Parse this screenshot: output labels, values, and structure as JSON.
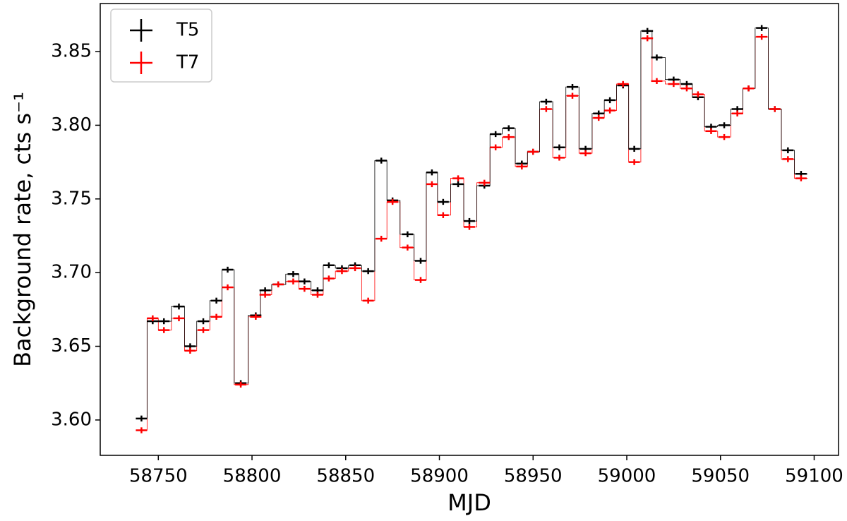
{
  "chart_data": {
    "type": "step-errorbar",
    "xlabel": "MJD",
    "ylabel": "Background rate, cts s⁻¹",
    "xlim": [
      58719,
      59113
    ],
    "ylim": [
      3.576,
      3.8826
    ],
    "xticks": [
      58750,
      58800,
      58850,
      58900,
      58950,
      59000,
      59050,
      59100
    ],
    "yticks": [
      {
        "value": 3.6,
        "label": "3.60"
      },
      3.65,
      {
        "value": 3.7,
        "label": "3.70"
      },
      3.75,
      {
        "value": 3.8,
        "label": "3.80"
      },
      3.85
    ],
    "legend": "upper left",
    "x": [
      58741,
      58747,
      58753,
      58761,
      58767,
      58774,
      58781,
      58787,
      58794,
      58802,
      58807,
      58814,
      58822,
      58828,
      58835,
      58841,
      58848,
      58855,
      58862,
      58869,
      58875,
      58883,
      58890,
      58896,
      58902,
      58910,
      58916,
      58924,
      58930,
      58937,
      58944,
      58950,
      58957,
      58964,
      58971,
      58978,
      58985,
      58991,
      58998,
      59004,
      59011,
      59016,
      59025,
      59032,
      59038,
      59045,
      59052,
      59059,
      59065,
      59072,
      59079,
      59086,
      59093
    ],
    "series": [
      {
        "name": "T5",
        "color": "#000000",
        "xerr": 3,
        "yerr": 0.002,
        "values": [
          3.601,
          3.667,
          3.667,
          3.677,
          3.65,
          3.667,
          3.681,
          3.702,
          3.625,
          3.671,
          3.688,
          3.692,
          3.699,
          3.694,
          3.688,
          3.705,
          3.703,
          3.705,
          3.701,
          3.776,
          3.749,
          3.726,
          3.708,
          3.768,
          3.748,
          3.76,
          3.735,
          3.759,
          3.794,
          3.798,
          3.774,
          3.782,
          3.816,
          3.785,
          3.826,
          3.784,
          3.808,
          3.817,
          3.827,
          3.784,
          3.864,
          3.846,
          3.831,
          3.828,
          3.819,
          3.799,
          3.8,
          3.811,
          3.825,
          3.866,
          3.811,
          3.783,
          3.767
        ]
      },
      {
        "name": "T7",
        "color": "#ff0000",
        "xerr": 3,
        "yerr": 0.002,
        "values": [
          3.593,
          3.669,
          3.661,
          3.669,
          3.647,
          3.661,
          3.67,
          3.69,
          3.624,
          3.67,
          3.685,
          3.692,
          3.694,
          3.689,
          3.685,
          3.696,
          3.701,
          3.703,
          3.681,
          3.723,
          3.748,
          3.717,
          3.695,
          3.76,
          3.739,
          3.764,
          3.731,
          3.761,
          3.785,
          3.792,
          3.772,
          3.782,
          3.811,
          3.778,
          3.82,
          3.781,
          3.805,
          3.81,
          3.828,
          3.775,
          3.859,
          3.83,
          3.828,
          3.825,
          3.821,
          3.796,
          3.792,
          3.808,
          3.825,
          3.86,
          3.811,
          3.777,
          3.764
        ]
      }
    ]
  }
}
